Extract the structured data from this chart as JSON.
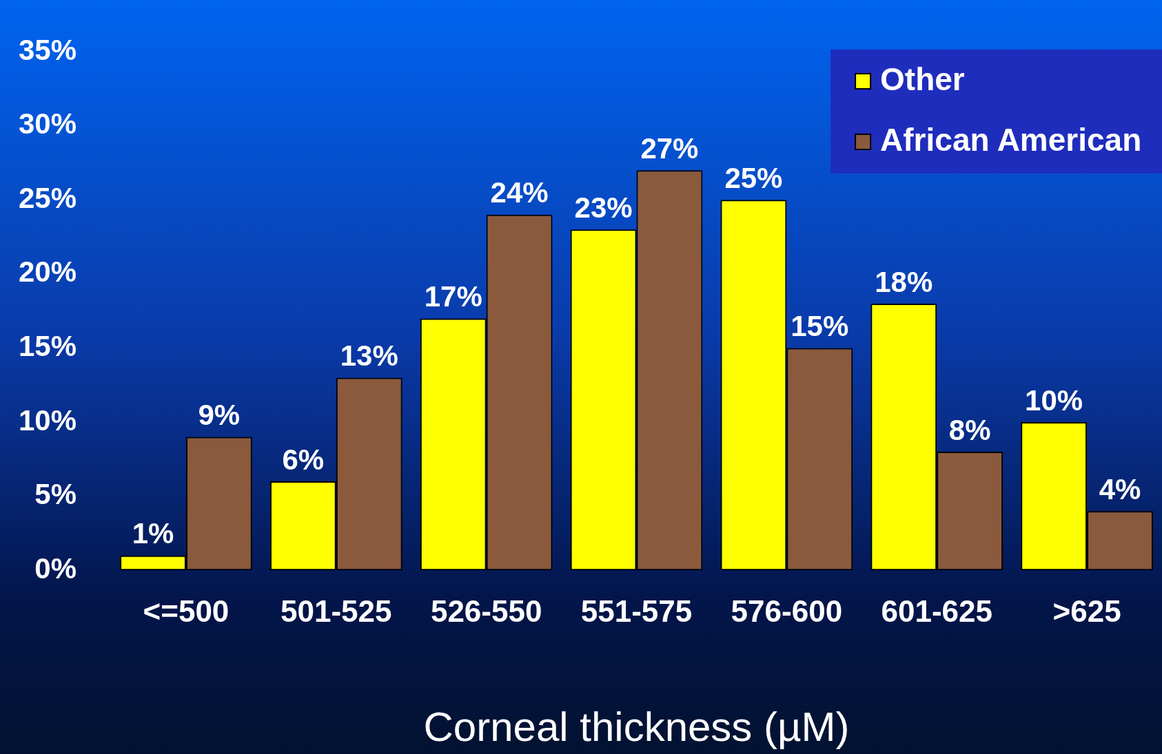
{
  "chart_data": {
    "type": "bar",
    "xlabel": "Corneal thickness (µM)",
    "categories": [
      "<=500",
      "501-525",
      "526-550",
      "551-575",
      "576-600",
      "601-625",
      ">625"
    ],
    "series": [
      {
        "name": "Other",
        "color": "#ffff00",
        "values": [
          1,
          6,
          17,
          23,
          25,
          18,
          10
        ],
        "value_labels": [
          "1%",
          "6%",
          "17%",
          "23%",
          "25%",
          "18%",
          "10%"
        ]
      },
      {
        "name": "African American",
        "color": "#8b5a3c",
        "values": [
          9,
          13,
          24,
          27,
          15,
          8,
          4
        ],
        "value_labels": [
          "9%",
          "13%",
          "24%",
          "27%",
          "15%",
          "8%",
          "4%"
        ]
      }
    ],
    "ylim": [
      0,
      35
    ],
    "yticks": [
      {
        "value": 0,
        "label": "0%"
      },
      {
        "value": 5,
        "label": "5%"
      },
      {
        "value": 10,
        "label": "10%"
      },
      {
        "value": 15,
        "label": "15%"
      },
      {
        "value": 20,
        "label": "20%"
      },
      {
        "value": 25,
        "label": "25%"
      },
      {
        "value": 30,
        "label": "30%"
      },
      {
        "value": 35,
        "label": "35%"
      }
    ],
    "grid": false,
    "legend": "top right"
  }
}
